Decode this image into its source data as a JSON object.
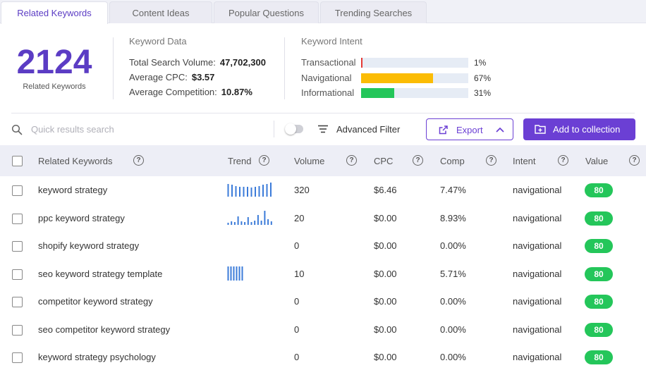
{
  "tabs": [
    {
      "label": "Related Keywords",
      "active": true
    },
    {
      "label": "Content Ideas",
      "active": false
    },
    {
      "label": "Popular Questions",
      "active": false
    },
    {
      "label": "Trending Searches",
      "active": false
    }
  ],
  "summary": {
    "count": "2124",
    "count_label": "Related Keywords"
  },
  "keyword_data": {
    "title": "Keyword Data",
    "total_search_volume_label": "Total Search Volume:",
    "total_search_volume": "47,702,300",
    "average_cpc_label": "Average CPC:",
    "average_cpc": "$3.57",
    "average_competition_label": "Average Competition:",
    "average_competition": "10.87%"
  },
  "keyword_intent": {
    "title": "Keyword Intent",
    "items": [
      {
        "label": "Transactional",
        "percent": "1%",
        "value": 0.01,
        "color": "#e53935"
      },
      {
        "label": "Navigational",
        "percent": "67%",
        "value": 0.67,
        "color": "#fbbc05"
      },
      {
        "label": "Informational",
        "percent": "31%",
        "value": 0.31,
        "color": "#24c65a"
      }
    ]
  },
  "toolbar": {
    "search_placeholder": "Quick results search",
    "advanced_filter": "Advanced Filter",
    "export": "Export",
    "add_to_collection": "Add to collection"
  },
  "table": {
    "columns": {
      "keyword": "Related Keywords",
      "trend": "Trend",
      "volume": "Volume",
      "cpc": "CPC",
      "comp": "Comp",
      "intent": "Intent",
      "value": "Value"
    },
    "rows": [
      {
        "keyword": "keyword strategy",
        "volume": "320",
        "cpc": "$6.46",
        "comp": "7.47%",
        "intent": "navigational",
        "value": "80",
        "trend": [
          0.9,
          0.85,
          0.75,
          0.7,
          0.7,
          0.7,
          0.65,
          0.7,
          0.75,
          0.85,
          0.9,
          1.0
        ]
      },
      {
        "keyword": "ppc keyword strategy",
        "volume": "20",
        "cpc": "$0.00",
        "comp": "8.93%",
        "intent": "navigational",
        "value": "80",
        "trend": [
          0.15,
          0.25,
          0.2,
          0.6,
          0.25,
          0.2,
          0.55,
          0.2,
          0.3,
          0.7,
          0.3,
          1.0,
          0.4,
          0.25
        ]
      },
      {
        "keyword": "shopify keyword strategy",
        "volume": "0",
        "cpc": "$0.00",
        "comp": "0.00%",
        "intent": "navigational",
        "value": "80",
        "trend": []
      },
      {
        "keyword": "seo keyword strategy template",
        "volume": "10",
        "cpc": "$0.00",
        "comp": "5.71%",
        "intent": "navigational",
        "value": "80",
        "trend": [
          1.0,
          1.0,
          1.0,
          1.0,
          1.0,
          1.0
        ]
      },
      {
        "keyword": "competitor keyword strategy",
        "volume": "0",
        "cpc": "$0.00",
        "comp": "0.00%",
        "intent": "navigational",
        "value": "80",
        "trend": []
      },
      {
        "keyword": "seo competitor keyword strategy",
        "volume": "0",
        "cpc": "$0.00",
        "comp": "0.00%",
        "intent": "navigational",
        "value": "80",
        "trend": []
      },
      {
        "keyword": "keyword strategy psychology",
        "volume": "0",
        "cpc": "$0.00",
        "comp": "0.00%",
        "intent": "navigational",
        "value": "80",
        "trend": []
      }
    ]
  }
}
